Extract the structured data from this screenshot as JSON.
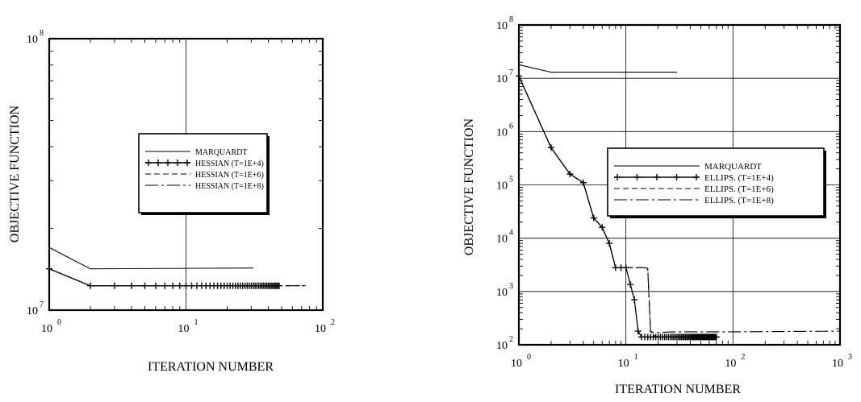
{
  "chart_data": [
    {
      "type": "line",
      "xscale": "log",
      "yscale": "log",
      "xlabel": "ITERATION NUMBER",
      "ylabel": "OBJECTIVE FUNCTION",
      "xlim": [
        1,
        100
      ],
      "ylim": [
        10000000,
        100000000
      ],
      "grid": true,
      "legend": "center-right",
      "x_ticks": [
        {
          "value": 1,
          "base": "10",
          "exp": "0"
        },
        {
          "value": 10,
          "base": "10",
          "exp": "1"
        },
        {
          "value": 100,
          "base": "10",
          "exp": "2"
        }
      ],
      "y_ticks": [
        {
          "value": 10000000,
          "base": "10",
          "exp": "7"
        },
        {
          "value": 100000000,
          "base": "10",
          "exp": "8"
        }
      ],
      "series": [
        {
          "name": "MARQUARDT",
          "style": "solid",
          "x": [
            1,
            2,
            31
          ],
          "y": [
            17000000,
            14200000,
            14300000
          ]
        },
        {
          "name": "HESSIAN (T=1E+4)",
          "style": "plus",
          "x": [
            1,
            2,
            48
          ],
          "y": [
            14200000,
            12300000,
            12300000
          ]
        },
        {
          "name": "HESSIAN (T=1E+6)",
          "style": "dash",
          "x": [
            1,
            2,
            75
          ],
          "y": [
            14200000,
            12300000,
            12300000
          ]
        },
        {
          "name": "HESSIAN (T=1E+8)",
          "style": "longdash",
          "x": [
            1,
            2,
            75
          ],
          "y": [
            14200000,
            12300000,
            12300000
          ]
        }
      ]
    },
    {
      "type": "line",
      "xscale": "log",
      "yscale": "log",
      "xlabel": "ITERATION NUMBER",
      "ylabel": "OBJECTIVE FUNCTION",
      "xlim": [
        1,
        1000
      ],
      "ylim": [
        100,
        100000000
      ],
      "grid": true,
      "legend": "center-right",
      "x_ticks": [
        {
          "value": 1,
          "base": "10",
          "exp": "0"
        },
        {
          "value": 10,
          "base": "10",
          "exp": "1"
        },
        {
          "value": 100,
          "base": "10",
          "exp": "2"
        },
        {
          "value": 1000,
          "base": "10",
          "exp": "3"
        }
      ],
      "y_ticks": [
        {
          "value": 100,
          "base": "10",
          "exp": "2"
        },
        {
          "value": 1000,
          "base": "10",
          "exp": "3"
        },
        {
          "value": 10000,
          "base": "10",
          "exp": "4"
        },
        {
          "value": 100000,
          "base": "10",
          "exp": "5"
        },
        {
          "value": 1000000,
          "base": "10",
          "exp": "6"
        },
        {
          "value": 10000000,
          "base": "10",
          "exp": "7"
        },
        {
          "value": 100000000,
          "base": "10",
          "exp": "8"
        }
      ],
      "series": [
        {
          "name": "MARQUARDT",
          "style": "solid",
          "x": [
            1,
            2,
            30
          ],
          "y": [
            18000000,
            13000000,
            13000000
          ]
        },
        {
          "name": "ELLIPS. (T=1E+4)",
          "style": "plus",
          "x": [
            1,
            2,
            3,
            4,
            5,
            6,
            7,
            8,
            9,
            10,
            12,
            13,
            14,
            15,
            20,
            40,
            70
          ],
          "y": [
            11000000,
            500000,
            160000,
            110000,
            24000,
            16000,
            8000,
            2800,
            2800,
            2800,
            700,
            180,
            140,
            140,
            140,
            140,
            140
          ]
        },
        {
          "name": "ELLIPS. (T=1E+6)",
          "style": "dash",
          "x": [
            1,
            2,
            3,
            4,
            5,
            6,
            7,
            8,
            15,
            16,
            17,
            18,
            20,
            40,
            75
          ],
          "y": [
            11000000,
            500000,
            160000,
            110000,
            24000,
            16000,
            8000,
            2800,
            2800,
            2700,
            180,
            150,
            140,
            140,
            140
          ]
        },
        {
          "name": "ELLIPS. (T=1E+8)",
          "style": "longdash",
          "x": [
            1,
            2,
            3,
            4,
            5,
            6,
            7,
            8,
            15,
            16,
            17,
            18,
            30,
            100,
            1000
          ],
          "y": [
            11000000,
            500000,
            160000,
            110000,
            24000,
            16000,
            8000,
            2800,
            2800,
            2700,
            180,
            170,
            175,
            175,
            180
          ]
        }
      ]
    }
  ]
}
